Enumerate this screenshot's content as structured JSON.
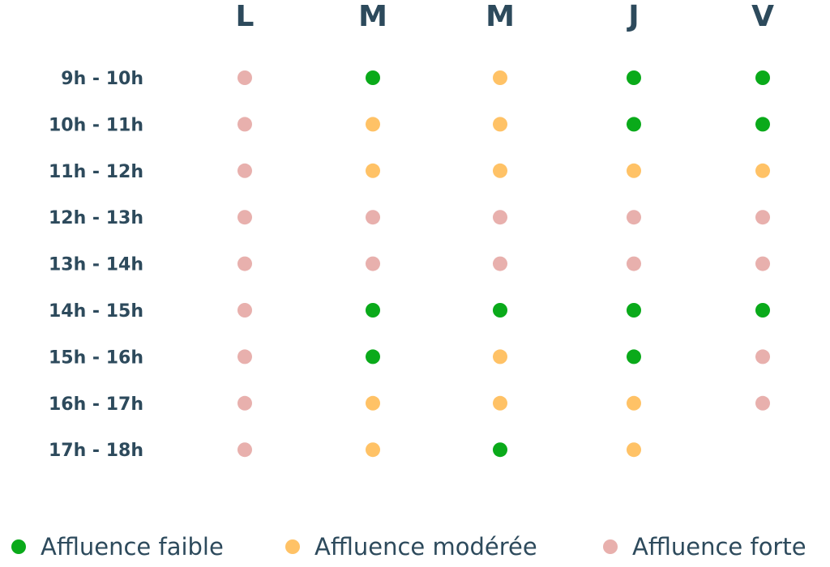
{
  "chart_data": {
    "type": "heatmap",
    "title": "",
    "days": [
      "L",
      "M",
      "M",
      "J",
      "V"
    ],
    "time_slots": [
      "9h - 10h",
      "10h - 11h",
      "11h - 12h",
      "12h - 13h",
      "13h - 14h",
      "14h - 15h",
      "15h - 16h",
      "16h - 17h",
      "17h - 18h"
    ],
    "levels": {
      "faible": "#0aaa1a",
      "moderee": "#ffc266",
      "forte": "#e8b0ad"
    },
    "grid": [
      [
        "forte",
        "faible",
        "moderee",
        "faible",
        "faible"
      ],
      [
        "forte",
        "moderee",
        "moderee",
        "faible",
        "faible"
      ],
      [
        "forte",
        "moderee",
        "moderee",
        "moderee",
        "moderee"
      ],
      [
        "forte",
        "forte",
        "forte",
        "forte",
        "forte"
      ],
      [
        "forte",
        "forte",
        "forte",
        "forte",
        "forte"
      ],
      [
        "forte",
        "faible",
        "faible",
        "faible",
        "faible"
      ],
      [
        "forte",
        "faible",
        "moderee",
        "faible",
        "forte"
      ],
      [
        "forte",
        "moderee",
        "moderee",
        "moderee",
        "forte"
      ],
      [
        "forte",
        "moderee",
        "faible",
        "moderee",
        null
      ]
    ],
    "legend": [
      {
        "key": "faible",
        "label": "Affluence faible"
      },
      {
        "key": "moderee",
        "label": "Affluence modérée"
      },
      {
        "key": "forte",
        "label": "Affluence forte"
      }
    ]
  }
}
